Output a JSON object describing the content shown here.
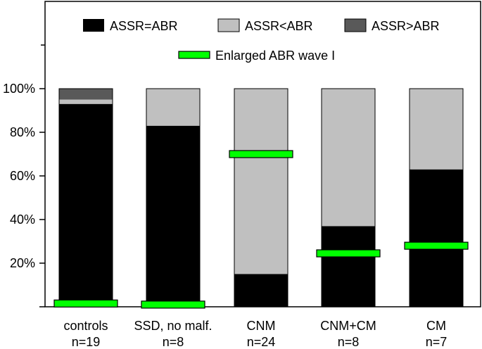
{
  "chart_data": {
    "type": "bar",
    "stacked": true,
    "categories": [
      {
        "line1": "controls",
        "line2": "n=19"
      },
      {
        "line1": "SSD, no malf.",
        "line2": "n=8"
      },
      {
        "line1": "CNM",
        "line2": "n=24"
      },
      {
        "line1": "CNM+CM",
        "line2": "n=8"
      },
      {
        "line1": "CM",
        "line2": "n=7"
      }
    ],
    "series": [
      {
        "name": "ASSR=ABR",
        "color": "#000000",
        "values": [
          93,
          83,
          15,
          37,
          63
        ]
      },
      {
        "name": "ASSR<ABR",
        "color": "#c0c0c0",
        "values": [
          2,
          17,
          85,
          63,
          37
        ]
      },
      {
        "name": "ASSR>ABR",
        "color": "#595959",
        "values": [
          5,
          0,
          0,
          0,
          0
        ]
      }
    ],
    "marker": {
      "name": "Enlarged ABR wave I",
      "color": "#00ff00",
      "values": [
        1.5,
        1,
        70,
        24.5,
        28
      ]
    },
    "ylim": [
      0,
      100
    ],
    "yticks": [
      "20%",
      "40%",
      "60%",
      "80%",
      "100%"
    ],
    "ytick_values": [
      20,
      40,
      60,
      80,
      100
    ],
    "legend_position": "top",
    "grid": false,
    "xlabel": "",
    "ylabel": "",
    "title": ""
  }
}
